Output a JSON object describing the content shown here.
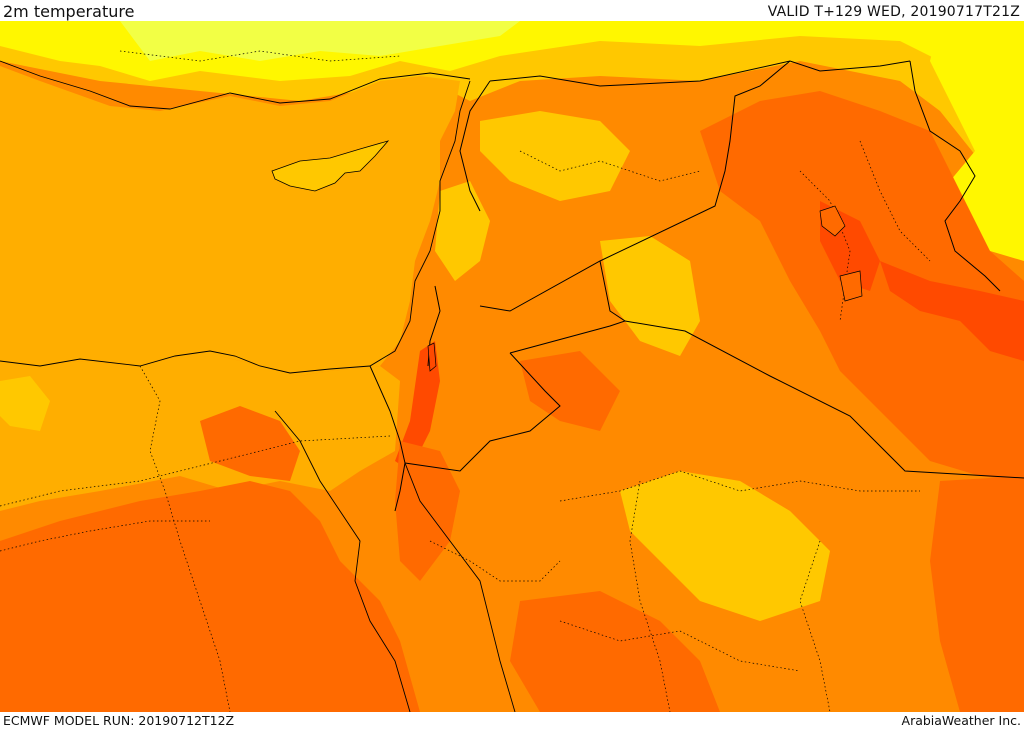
{
  "header": {
    "title": "2m temperature",
    "valid": "VALID T+129 WED, 20190717T21Z"
  },
  "footer": {
    "model_run": "ECMWF MODEL RUN: 20190712T12Z",
    "credit": "ArabiaWeather Inc."
  },
  "colors": {
    "sea": "#ffae00",
    "light_yellow": "#f2ff45",
    "yellow": "#fff700",
    "gold": "#ffc800",
    "orange": "#ff8a00",
    "dark_orange": "#ff6a00",
    "red_orange": "#ff4a00",
    "border": "#000000"
  }
}
